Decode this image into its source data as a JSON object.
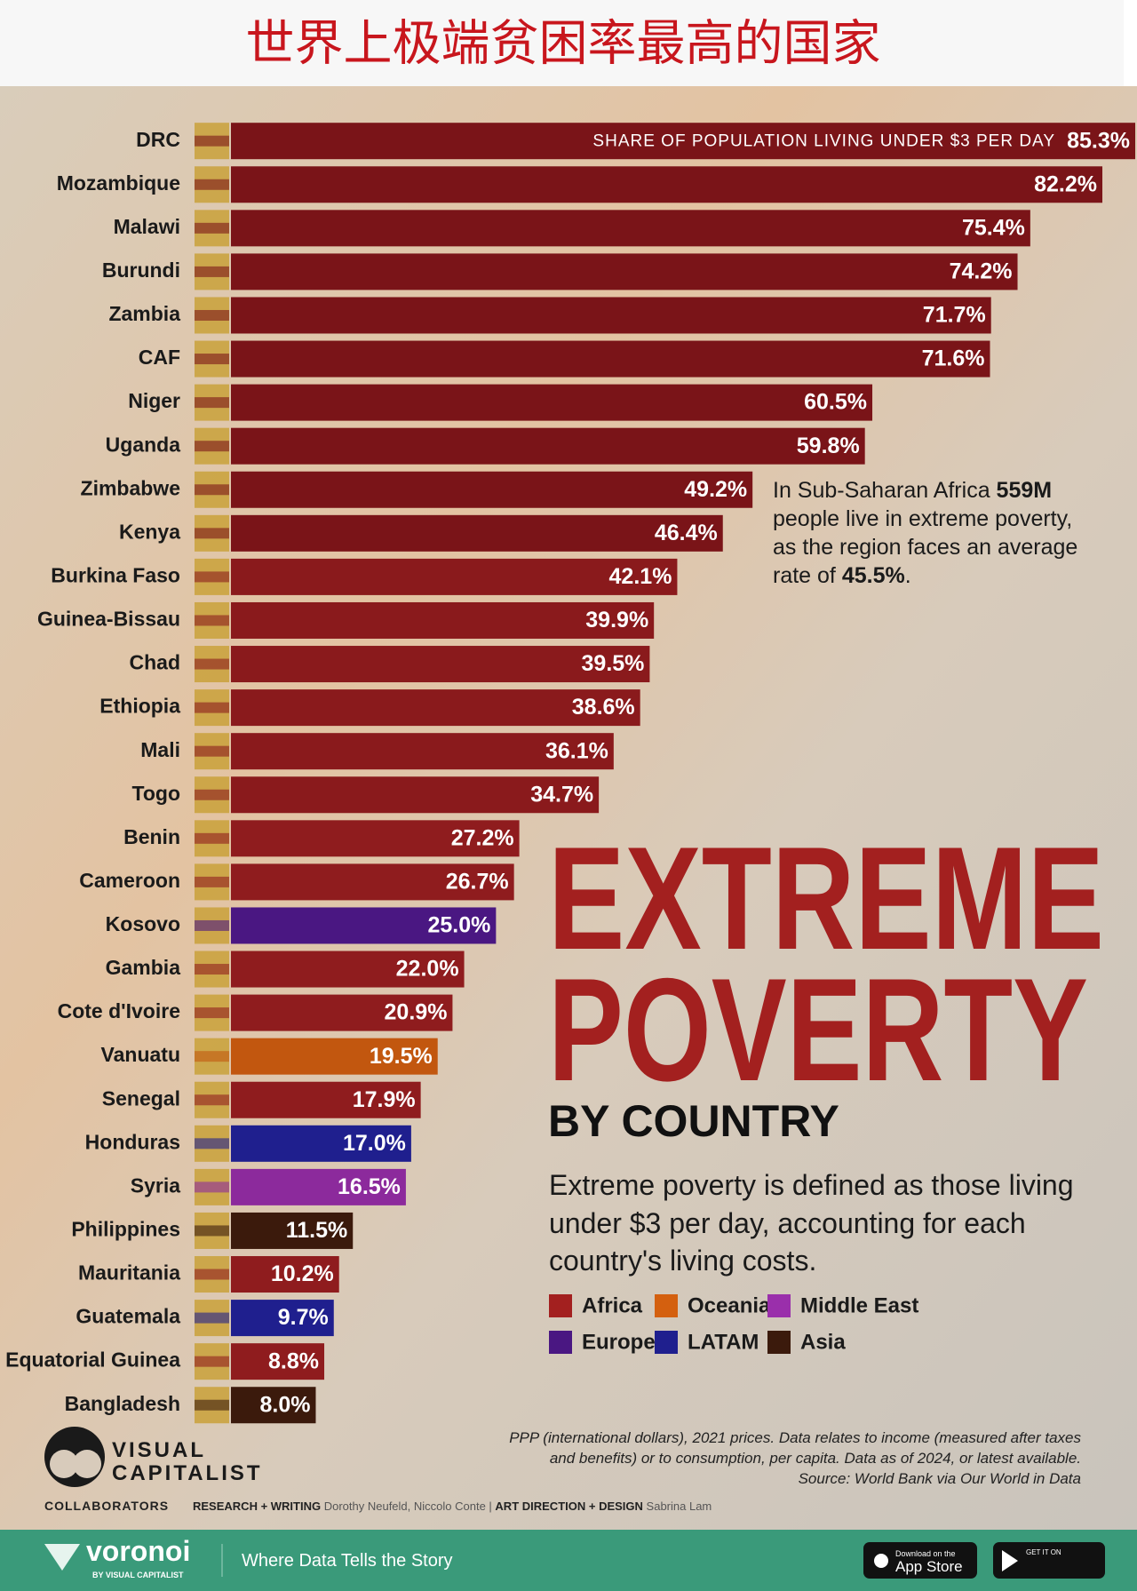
{
  "header": {
    "title": "世界上极端贫困率最高的国家"
  },
  "chart_data": {
    "type": "bar",
    "orientation": "horizontal",
    "title": "EXTREME",
    "title2": "POVERTY",
    "subtitle": "BY COUNTRY",
    "bar_annotation": "SHARE OF POPULATION LIVING UNDER $3 PER DAY",
    "categories": [
      "DRC",
      "Mozambique",
      "Malawi",
      "Burundi",
      "Zambia",
      "CAF",
      "Niger",
      "Uganda",
      "Zimbabwe",
      "Kenya",
      "Burkina Faso",
      "Guinea-Bissau",
      "Chad",
      "Ethiopia",
      "Mali",
      "Togo",
      "Benin",
      "Cameroon",
      "Kosovo",
      "Gambia",
      "Cote d'Ivoire",
      "Vanuatu",
      "Senegal",
      "Honduras",
      "Syria",
      "Philippines",
      "Mauritania",
      "Guatemala",
      "Equatorial Guinea",
      "Bangladesh"
    ],
    "values": [
      85.3,
      82.2,
      75.4,
      74.2,
      71.7,
      71.6,
      60.5,
      59.8,
      49.2,
      46.4,
      42.1,
      39.9,
      39.5,
      38.6,
      36.1,
      34.7,
      27.2,
      26.7,
      25.0,
      22.0,
      20.9,
      19.5,
      17.9,
      17.0,
      16.5,
      11.5,
      10.2,
      9.7,
      8.8,
      8.0
    ],
    "value_labels": [
      "85.3%",
      "82.2%",
      "75.4%",
      "74.2%",
      "71.7%",
      "71.6%",
      "60.5%",
      "59.8%",
      "49.2%",
      "46.4%",
      "42.1%",
      "39.9%",
      "39.5%",
      "38.6%",
      "36.1%",
      "34.7%",
      "27.2%",
      "26.7%",
      "25.0%",
      "22.0%",
      "20.9%",
      "19.5%",
      "17.9%",
      "17.0%",
      "16.5%",
      "11.5%",
      "10.2%",
      "9.7%",
      "8.8%",
      "8.0%"
    ],
    "colors": [
      "#7a1418",
      "#7a1418",
      "#7a1418",
      "#7a1418",
      "#7a1418",
      "#7a1418",
      "#7a1418",
      "#7a1418",
      "#7a1418",
      "#7a1418",
      "#8a1a1c",
      "#8a1a1c",
      "#8a1a1c",
      "#8a1a1c",
      "#8a1a1c",
      "#8a1a1c",
      "#8f1c1e",
      "#8f1c1e",
      "#4a1782",
      "#8f1c1e",
      "#8f1c1e",
      "#c2570f",
      "#8f1c1e",
      "#1f1f8e",
      "#8c2a9c",
      "#3b1a0c",
      "#8f1c1e",
      "#1f1f8e",
      "#8f1c1e",
      "#3b1a0c"
    ],
    "legend": [
      {
        "name": "Africa",
        "color": "#a3201f"
      },
      {
        "name": "Oceania",
        "color": "#d4600f"
      },
      {
        "name": "Middle East",
        "color": "#9a2fab"
      },
      {
        "name": "Europe",
        "color": "#4a1782"
      },
      {
        "name": "LATAM",
        "color": "#1f1f8e"
      },
      {
        "name": "Asia",
        "color": "#3b1a0c"
      }
    ],
    "description": [
      "Extreme poverty is defined as those living",
      "under $3 per day, accounting for each",
      "country's living costs."
    ],
    "note": [
      "In Sub-Saharan Africa ",
      "559M",
      "people live in extreme poverty,",
      "as the region faces an average",
      "rate of ",
      "45.5%",
      "."
    ],
    "footnote": [
      "PPP (international dollars), 2021 prices. Data relates to income (measured after taxes",
      "and benefits) or to consumption, per capita. Data as of 2024, or latest available.",
      "Source: World Bank via Our World in Data"
    ]
  },
  "branding": {
    "logo": [
      "VISUAL",
      "CAPITALIST"
    ],
    "collaborators": "COLLABORATORS",
    "research_label": "RESEARCH + WRITING",
    "research": "Dorothy Neufeld, Niccolo Conte",
    "design_label": "ART DIRECTION + DESIGN",
    "design": "Sabrina Lam"
  },
  "footer": {
    "brand": "voronoi",
    "brand_sub": "BY VISUAL CAPITALIST",
    "tagline": "Where Data Tells the Story",
    "app_store_small": "Download on the",
    "app_store": "App Store",
    "play_small": "GET IT ON"
  }
}
